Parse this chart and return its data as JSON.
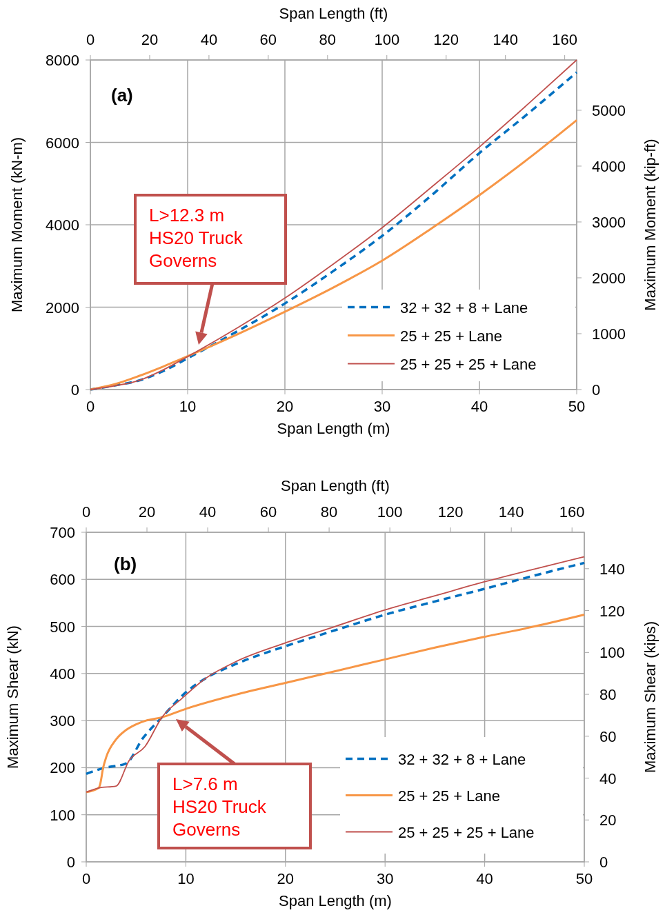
{
  "chart_data": [
    {
      "type": "line",
      "xlabel": "Span Length (m)",
      "x2label": "Span Length (ft)",
      "ylabel": "Maximum Moment (kN-m)",
      "y2label": "Maximum Moment (kip-ft)",
      "xlim": [
        0,
        50
      ],
      "xticks": [
        0,
        10,
        20,
        30,
        40,
        50
      ],
      "x2lim": [
        0,
        164.04
      ],
      "x2ticks": [
        0,
        20,
        40,
        60,
        80,
        100,
        120,
        140,
        160
      ],
      "ylim": [
        0,
        8000
      ],
      "yticks": [
        0,
        2000,
        4000,
        6000,
        8000
      ],
      "y2lim": [
        0,
        5900
      ],
      "y2ticks": [
        0,
        1000,
        2000,
        3000,
        4000,
        5000
      ],
      "grid": true,
      "legend": "bottom right",
      "annotations": [
        "(a)",
        "L>12.3 m\nHS20 Truck\nGoverns"
      ],
      "series": [
        {
          "name": "32 + 32 + 8 + Lane",
          "color": "#0070c0",
          "line_style": "dashed",
          "x": [
            0,
            2.5,
            5,
            7.5,
            10,
            15,
            20,
            25,
            30,
            35,
            40,
            45,
            50
          ],
          "values": [
            0,
            100,
            220,
            450,
            760,
            1400,
            2090,
            2880,
            3730,
            4700,
            5740,
            6700,
            7700
          ]
        },
        {
          "name": "25 + 25 + Lane",
          "color": "#f79646",
          "line_style": "solid",
          "x": [
            0,
            2.5,
            5,
            7.5,
            10,
            15,
            20,
            25,
            30,
            35,
            40,
            45,
            50
          ],
          "values": [
            0,
            130,
            330,
            560,
            810,
            1330,
            1890,
            2480,
            3130,
            3900,
            4720,
            5600,
            6540
          ]
        },
        {
          "name": "25 + 25 + 25 + Lane",
          "color": "#c0504d",
          "line_style": "solid",
          "x": [
            0,
            2.5,
            5,
            7.5,
            10,
            15,
            20,
            25,
            30,
            35,
            40,
            45,
            50
          ],
          "values": [
            0,
            90,
            220,
            480,
            800,
            1480,
            2220,
            3050,
            3930,
            4900,
            5890,
            6930,
            8000
          ]
        }
      ]
    },
    {
      "type": "line",
      "xlabel": "Span Length (m)",
      "x2label": "Span Length (ft)",
      "ylabel": "Maximum Shear (kN)",
      "y2label": "Maximum Shear (kips)",
      "xlim": [
        0,
        50
      ],
      "xticks": [
        0,
        10,
        20,
        30,
        40,
        50
      ],
      "x2lim": [
        0,
        164.04
      ],
      "x2ticks": [
        0,
        20,
        40,
        60,
        80,
        100,
        120,
        140,
        160
      ],
      "ylim": [
        0,
        700
      ],
      "yticks": [
        0,
        100,
        200,
        300,
        400,
        500,
        600,
        700
      ],
      "y2lim": [
        0,
        157.4
      ],
      "y2ticks": [
        0,
        20,
        40,
        60,
        80,
        100,
        120,
        140
      ],
      "grid": true,
      "legend": "bottom right",
      "annotations": [
        "(b)",
        "L>7.6 m\nHS20 Truck\nGoverns"
      ],
      "series": [
        {
          "name": "32 + 32 + 8 + Lane",
          "color": "#0070c0",
          "line_style": "dashed",
          "x": [
            0,
            1.7,
            4,
            5.7,
            7.6,
            10,
            12,
            15,
            20,
            25,
            30,
            35,
            40,
            45,
            50
          ],
          "values": [
            187,
            199,
            209,
            263,
            307,
            360,
            390,
            420,
            458,
            492,
            525,
            553,
            580,
            608,
            635
          ]
        },
        {
          "name": "25 + 25 + Lane",
          "color": "#f79646",
          "line_style": "solid",
          "x": [
            0,
            1.25,
            1.4,
            1.7,
            2,
            3,
            4,
            5,
            6,
            7.6,
            10,
            15,
            20,
            25,
            30,
            35,
            40,
            45,
            50
          ],
          "values": [
            148,
            157,
            165,
            200,
            222,
            260,
            280,
            292,
            300,
            307,
            325,
            355,
            380,
            405,
            430,
            455,
            478,
            500,
            525
          ]
        },
        {
          "name": "25 + 25 + 25 + Lane",
          "color": "#c0504d",
          "line_style": "solid",
          "x": [
            0,
            1.25,
            3,
            4.3,
            5.9,
            7.6,
            9.6,
            12,
            15,
            20,
            25,
            30,
            35,
            40,
            45,
            50
          ],
          "values": [
            148,
            157,
            161,
            215,
            245,
            307,
            347,
            390,
            425,
            465,
            500,
            535,
            565,
            595,
            622,
            648
          ]
        }
      ]
    }
  ]
}
